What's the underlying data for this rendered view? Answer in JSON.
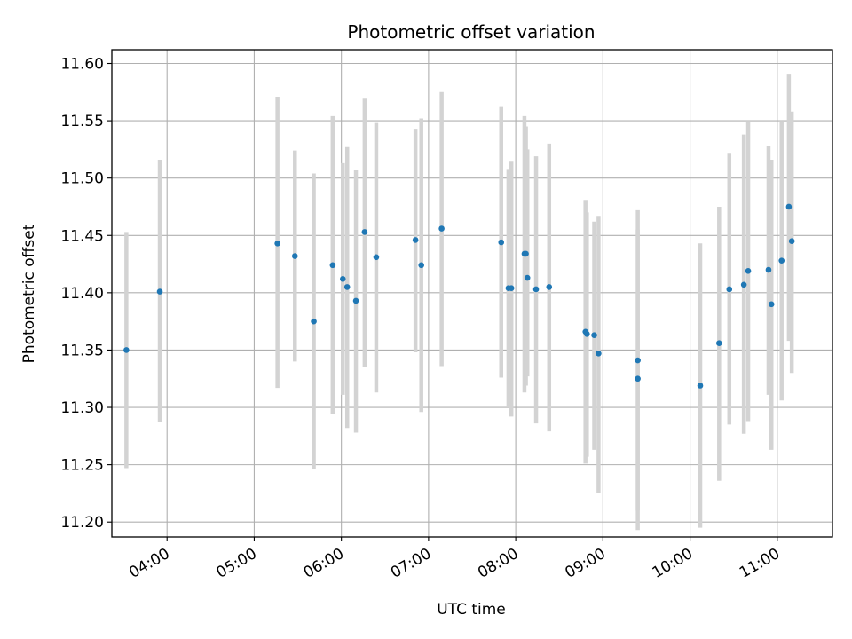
{
  "chart_data": {
    "type": "scatter",
    "title": "Photometric offset variation",
    "xlabel": "UTC time",
    "ylabel": "Photometric offset",
    "x_axis_type": "time",
    "xlim": [
      "03:22",
      "11:38"
    ],
    "ylim": [
      11.187,
      11.612
    ],
    "x_ticks": [
      "04:00",
      "05:00",
      "06:00",
      "07:00",
      "08:00",
      "09:00",
      "10:00",
      "11:00"
    ],
    "y_ticks": [
      "11.20",
      "11.25",
      "11.30",
      "11.35",
      "11.40",
      "11.45",
      "11.50",
      "11.55",
      "11.60"
    ],
    "grid": true,
    "colors": {
      "points": "#1f77b4",
      "error_bars": "#d3d3d3",
      "grid": "#b0b0b0"
    },
    "series": [
      {
        "points": [
          {
            "x": "03:32",
            "y": 11.35,
            "ylo": 11.247,
            "yhi": 11.453
          },
          {
            "x": "03:55",
            "y": 11.401,
            "ylo": 11.287,
            "yhi": 11.516
          },
          {
            "x": "05:16",
            "y": 11.443,
            "ylo": 11.317,
            "yhi": 11.571
          },
          {
            "x": "05:28",
            "y": 11.432,
            "ylo": 11.34,
            "yhi": 11.524
          },
          {
            "x": "05:41",
            "y": 11.375,
            "ylo": 11.246,
            "yhi": 11.504
          },
          {
            "x": "05:54",
            "y": 11.424,
            "ylo": 11.294,
            "yhi": 11.554
          },
          {
            "x": "06:01",
            "y": 11.412,
            "ylo": 11.311,
            "yhi": 11.513
          },
          {
            "x": "06:04",
            "y": 11.405,
            "ylo": 11.282,
            "yhi": 11.527
          },
          {
            "x": "06:10",
            "y": 11.393,
            "ylo": 11.278,
            "yhi": 11.507
          },
          {
            "x": "06:16",
            "y": 11.453,
            "ylo": 11.335,
            "yhi": 11.57
          },
          {
            "x": "06:24",
            "y": 11.431,
            "ylo": 11.313,
            "yhi": 11.548
          },
          {
            "x": "06:51",
            "y": 11.446,
            "ylo": 11.348,
            "yhi": 11.543
          },
          {
            "x": "06:55",
            "y": 11.424,
            "ylo": 11.296,
            "yhi": 11.552
          },
          {
            "x": "07:09",
            "y": 11.456,
            "ylo": 11.336,
            "yhi": 11.575
          },
          {
            "x": "07:50",
            "y": 11.444,
            "ylo": 11.326,
            "yhi": 11.562
          },
          {
            "x": "07:55",
            "y": 11.404,
            "ylo": 11.3,
            "yhi": 11.508
          },
          {
            "x": "07:57",
            "y": 11.404,
            "ylo": 11.292,
            "yhi": 11.515
          },
          {
            "x": "08:06",
            "y": 11.434,
            "ylo": 11.313,
            "yhi": 11.554
          },
          {
            "x": "08:07",
            "y": 11.434,
            "ylo": 11.319,
            "yhi": 11.545
          },
          {
            "x": "08:08",
            "y": 11.413,
            "ylo": 11.327,
            "yhi": 11.525
          },
          {
            "x": "08:14",
            "y": 11.403,
            "ylo": 11.286,
            "yhi": 11.519
          },
          {
            "x": "08:23",
            "y": 11.405,
            "ylo": 11.279,
            "yhi": 11.53
          },
          {
            "x": "08:48",
            "y": 11.366,
            "ylo": 11.251,
            "yhi": 11.481
          },
          {
            "x": "08:49",
            "y": 11.364,
            "ylo": 11.257,
            "yhi": 11.47
          },
          {
            "x": "08:54",
            "y": 11.363,
            "ylo": 11.263,
            "yhi": 11.462
          },
          {
            "x": "08:57",
            "y": 11.347,
            "ylo": 11.225,
            "yhi": 11.467
          },
          {
            "x": "09:24",
            "y": 11.341,
            "ylo": 11.21,
            "yhi": 11.472
          },
          {
            "x": "09:24",
            "y": 11.325,
            "ylo": 11.193,
            "yhi": 11.455
          },
          {
            "x": "10:07",
            "y": 11.319,
            "ylo": 11.195,
            "yhi": 11.443
          },
          {
            "x": "10:20",
            "y": 11.356,
            "ylo": 11.236,
            "yhi": 11.475
          },
          {
            "x": "10:27",
            "y": 11.403,
            "ylo": 11.285,
            "yhi": 11.522
          },
          {
            "x": "10:37",
            "y": 11.407,
            "ylo": 11.277,
            "yhi": 11.538
          },
          {
            "x": "10:40",
            "y": 11.419,
            "ylo": 11.288,
            "yhi": 11.55
          },
          {
            "x": "10:54",
            "y": 11.42,
            "ylo": 11.311,
            "yhi": 11.528
          },
          {
            "x": "10:56",
            "y": 11.39,
            "ylo": 11.263,
            "yhi": 11.516
          },
          {
            "x": "11:03",
            "y": 11.428,
            "ylo": 11.306,
            "yhi": 11.55
          },
          {
            "x": "11:08",
            "y": 11.475,
            "ylo": 11.358,
            "yhi": 11.591
          },
          {
            "x": "11:10",
            "y": 11.445,
            "ylo": 11.33,
            "yhi": 11.558
          }
        ]
      }
    ]
  }
}
